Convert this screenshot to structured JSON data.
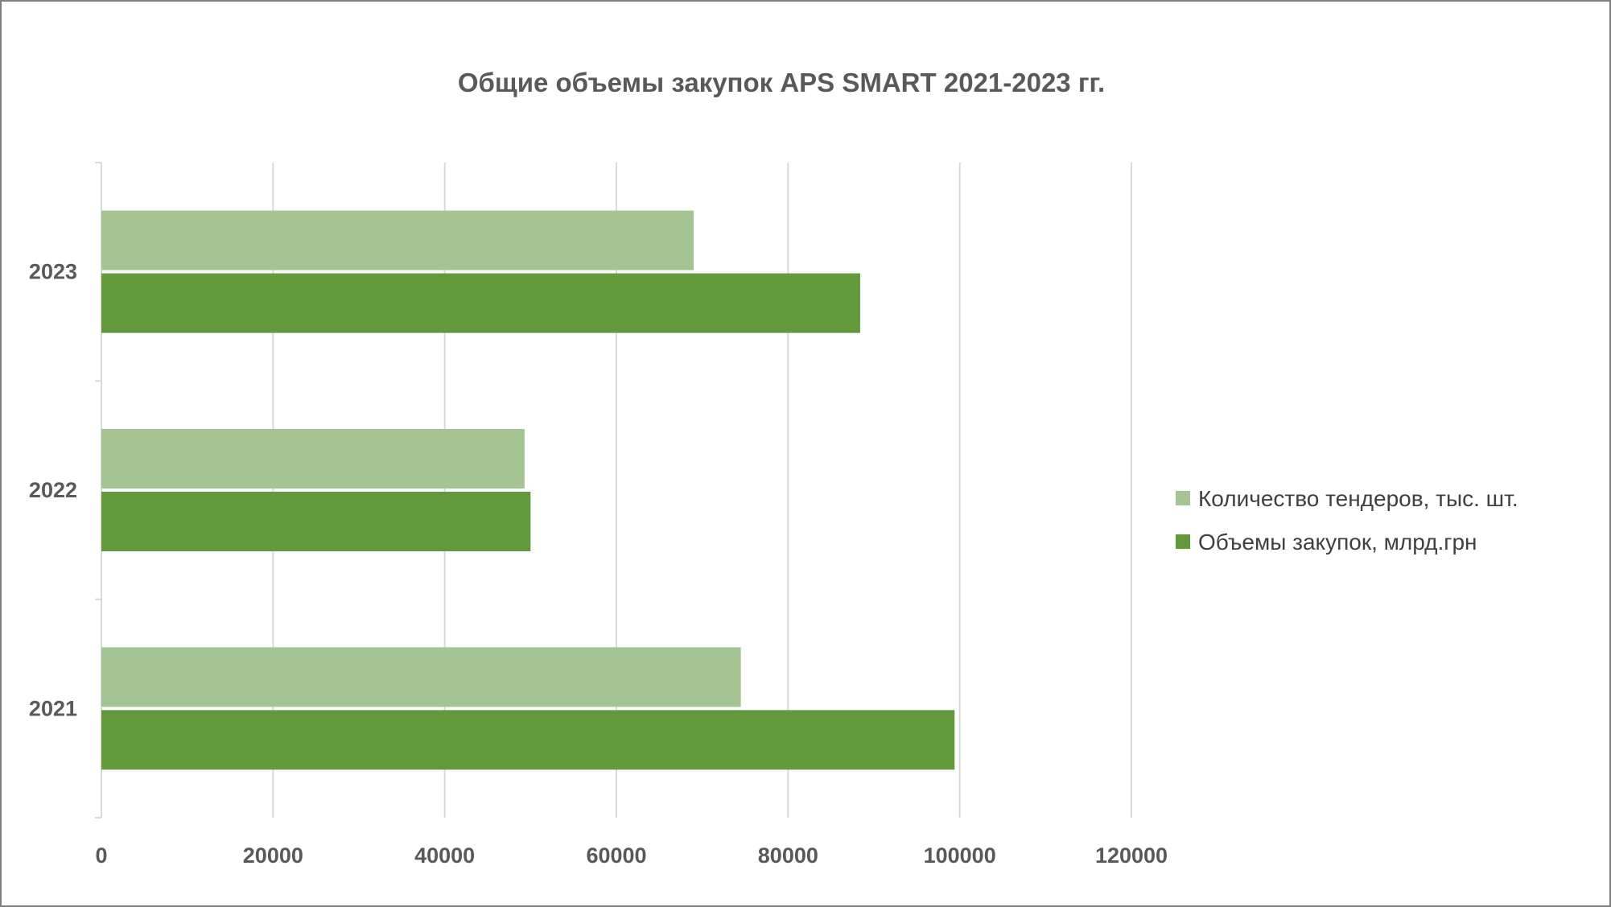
{
  "chart_data": {
    "type": "bar",
    "orientation": "horizontal",
    "title": "Общие объемы закупок APS SMART 2021-2023 гг.",
    "xlabel": "",
    "ylabel": "",
    "categories": [
      "2021",
      "2022",
      "2023"
    ],
    "series": [
      {
        "name": "Количество тендеров, тыс. шт.",
        "color": "#a4c593",
        "values": [
          74500,
          49300,
          69000
        ]
      },
      {
        "name": "Объемы закупок, млрд.грн",
        "color": "#61993b",
        "values": [
          99400,
          50000,
          88400
        ]
      }
    ],
    "xlim": [
      0,
      120000
    ],
    "x_ticks": [
      "0",
      "20000",
      "40000",
      "60000",
      "80000",
      "100000",
      "120000"
    ],
    "grid": true,
    "legend_position": "right"
  }
}
